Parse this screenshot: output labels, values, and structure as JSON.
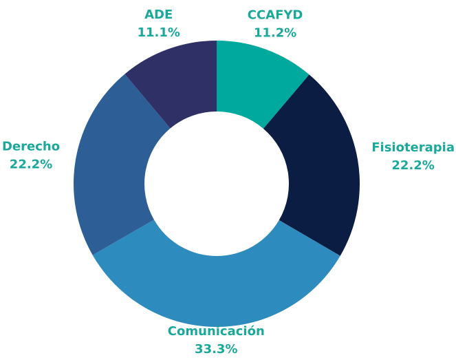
{
  "chart_data": {
    "type": "donut",
    "categories": [
      "CCAFYD",
      "Fisioterapia",
      "Comunicación",
      "Derecho",
      "ADE"
    ],
    "values": [
      11.2,
      22.2,
      33.3,
      22.2,
      11.1
    ],
    "value_labels": [
      "11.2%",
      "22.2%",
      "33.3%",
      "22.2%",
      "11.1%"
    ],
    "colors": [
      "#00a99d",
      "#0b1d42",
      "#2e8bbd",
      "#2d5e96",
      "#2f3166"
    ],
    "label_color": "#1aa89a"
  }
}
